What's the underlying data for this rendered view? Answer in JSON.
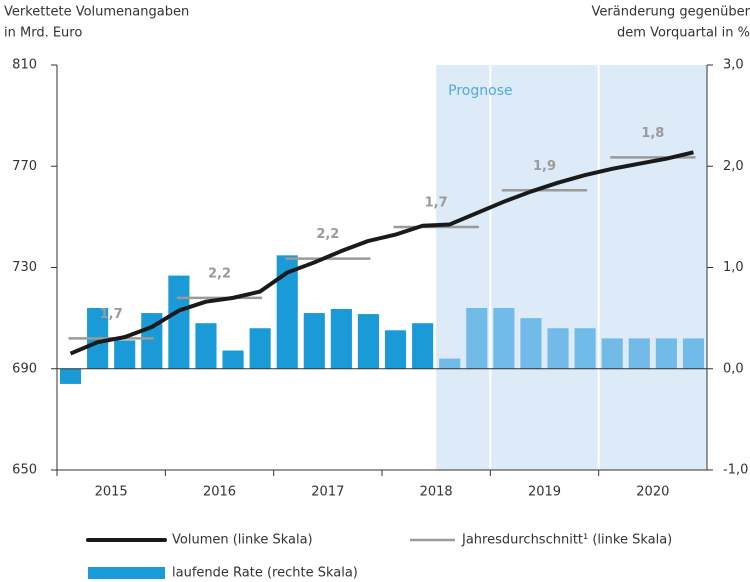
{
  "chart_data": {
    "type": "bar_line",
    "y_axis_title": [
      "Verkettete Volumenangaben",
      "in Mrd. Euro"
    ],
    "y2_axis_title": [
      "Veränderung gegenüber",
      "dem Vorquartal in %"
    ],
    "years": [
      "2015",
      "2016",
      "2017",
      "2018",
      "2019",
      "2020"
    ],
    "ylim": [
      650,
      810
    ],
    "yticks": [
      650,
      690,
      730,
      770,
      810
    ],
    "y2lim": [
      -1.0,
      3.0
    ],
    "y2ticks": [
      {
        "value": -1.0,
        "label": "-1,0"
      },
      {
        "value": 0.0,
        "label": "0,0"
      },
      {
        "value": 1.0,
        "label": "1,0"
      },
      {
        "value": 2.0,
        "label": "2,0"
      },
      {
        "value": 3.0,
        "label": "3,0"
      }
    ],
    "prognosis": {
      "label": "Prognose",
      "start_index": 14
    },
    "series": [
      {
        "name": "laufende Rate (rechte Skala)",
        "kind": "bar",
        "axis": "y2",
        "color": "#1a9ad6",
        "forecast_color": "#72bbe9",
        "values": [
          -0.15,
          0.6,
          0.28,
          0.55,
          0.92,
          0.45,
          0.18,
          0.4,
          1.12,
          0.55,
          0.59,
          0.54,
          0.38,
          0.45,
          0.1,
          0.6,
          0.6,
          0.5,
          0.4,
          0.4,
          0.3,
          0.3,
          0.3,
          0.3
        ]
      },
      {
        "name": "Volumen (linke Skala)",
        "kind": "line",
        "color": "#1a1a1a",
        "values": [
          696,
          700.5,
          702.5,
          706.5,
          713,
          716.5,
          718,
          720.5,
          728,
          732,
          736.5,
          740.5,
          743,
          746.5,
          747,
          751.5,
          756,
          760,
          763.5,
          766.5,
          769,
          771,
          773,
          775.5
        ]
      },
      {
        "name": "Jahresdurchschnitt¹ (linke Skala)",
        "kind": "annual",
        "color": "#9a9a9a",
        "values": [
          702,
          718,
          733.5,
          746,
          760.5,
          773.5
        ],
        "growth": [
          1.7,
          2.2,
          2.2,
          1.7,
          1.9,
          1.8
        ],
        "growth_labels": [
          "1,7",
          "2,2",
          "2,2",
          "1,7",
          "1,9",
          "1,8"
        ]
      }
    ]
  }
}
